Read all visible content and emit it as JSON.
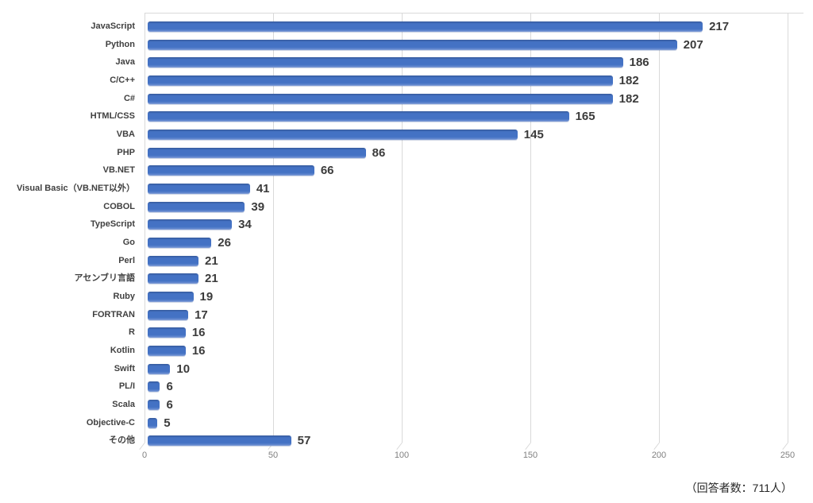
{
  "chart_data": {
    "type": "bar",
    "orientation": "horizontal",
    "title": "",
    "xlabel": "",
    "ylabel": "",
    "categories": [
      "JavaScript",
      "Python",
      "Java",
      "C/C++",
      "C#",
      "HTML/CSS",
      "VBA",
      "PHP",
      "VB.NET",
      "Visual Basic（VB.NET以外）",
      "COBOL",
      "TypeScript",
      "Go",
      "Perl",
      "アセンブリ言語",
      "Ruby",
      "FORTRAN",
      "R",
      "Kotlin",
      "Swift",
      "PL/I",
      "Scala",
      "Objective-C",
      "その他"
    ],
    "values": [
      217,
      207,
      186,
      182,
      182,
      165,
      145,
      86,
      66,
      41,
      39,
      34,
      26,
      21,
      21,
      19,
      17,
      16,
      16,
      10,
      6,
      6,
      5,
      57
    ],
    "xlim": [
      0,
      250
    ],
    "x_ticks": [
      0,
      50,
      100,
      150,
      200,
      250
    ],
    "grid": true,
    "legend": false,
    "value_labels_shown": true,
    "bar_color": "#4472C4",
    "gridline_color": "#d9d9d9",
    "label_color": "#404040",
    "tick_color": "#808080"
  },
  "footnote": "（回答者数：711人）"
}
